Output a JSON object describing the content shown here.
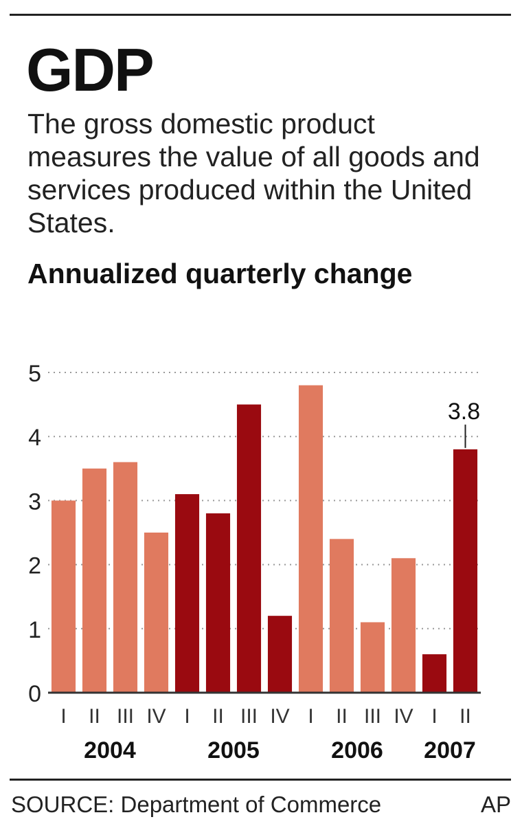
{
  "header": {
    "title": "GDP",
    "description": "The gross domestic product measures the value of all goods and services produced within the United States.",
    "subtitle": "Annualized quarterly change"
  },
  "chart_data": {
    "type": "bar",
    "title": "GDP",
    "ylabel": "Annualized quarterly change",
    "xlabel": "",
    "ylim": [
      0,
      5
    ],
    "yticks": [
      "0",
      "1",
      "2",
      "3",
      "4",
      "5"
    ],
    "grid": true,
    "categories": [
      "I",
      "II",
      "III",
      "IV",
      "I",
      "II",
      "III",
      "IV",
      "I",
      "II",
      "III",
      "IV",
      "I",
      "II"
    ],
    "years": [
      {
        "label": "2004",
        "start": 0,
        "end": 3
      },
      {
        "label": "2005",
        "start": 4,
        "end": 7
      },
      {
        "label": "2006",
        "start": 8,
        "end": 11
      },
      {
        "label": "2007",
        "start": 12,
        "end": 13
      }
    ],
    "values": [
      3.0,
      3.5,
      3.6,
      2.5,
      3.1,
      2.8,
      4.5,
      1.2,
      4.8,
      2.4,
      1.1,
      2.1,
      0.6,
      3.8
    ],
    "annotation": {
      "index": 13,
      "text": "3.8"
    }
  },
  "colors": {
    "light": "#e07a5f",
    "dark": "#9a0a10",
    "grid": "#999999",
    "axis": "#333333"
  },
  "footer": {
    "source": "SOURCE: Department of Commerce",
    "credit": "AP"
  }
}
